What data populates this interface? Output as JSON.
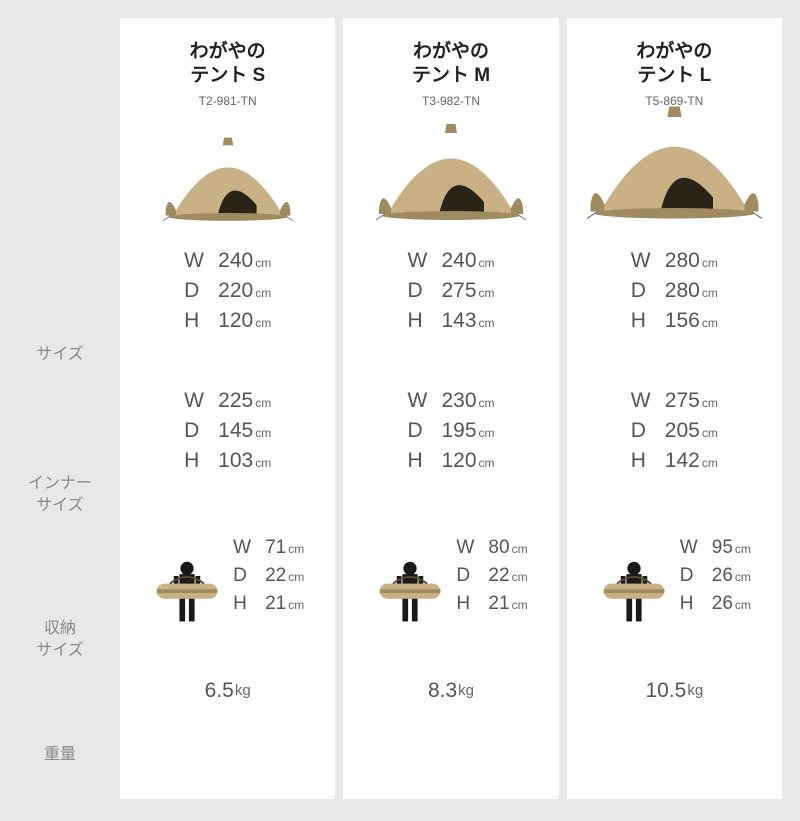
{
  "row_labels": {
    "size": "サイズ",
    "inner_size": "インナー\nサイズ",
    "pack_size": "収納\nサイズ",
    "weight": "重量"
  },
  "dimension_letters": {
    "w": "W",
    "d": "D",
    "h": "H"
  },
  "units": {
    "cm": "cm",
    "kg": "kg"
  },
  "colors": {
    "page_bg": "#e8e8e8",
    "card_bg": "#ffffff",
    "title_text": "#222222",
    "body_text": "#555555",
    "label_text": "#888888",
    "muted_text": "#666666",
    "tent_body": "#c8b285",
    "tent_shadow": "#a08a60",
    "tent_dark": "#2a2318",
    "bag_body": "#c8b285",
    "person_body": "#1a1a1a"
  },
  "products": [
    {
      "title_line1": "わがやの",
      "title_line2": "テント S",
      "model": "T2-981-TN",
      "tent_scale": "s",
      "size": {
        "w": "240",
        "d": "220",
        "h": "120"
      },
      "inner": {
        "w": "225",
        "d": "145",
        "h": "103"
      },
      "pack": {
        "w": "71",
        "d": "22",
        "h": "21"
      },
      "weight": "6.5"
    },
    {
      "title_line1": "わがやの",
      "title_line2": "テント M",
      "model": "T3-982-TN",
      "tent_scale": "m",
      "size": {
        "w": "240",
        "d": "275",
        "h": "143"
      },
      "inner": {
        "w": "230",
        "d": "195",
        "h": "120"
      },
      "pack": {
        "w": "80",
        "d": "22",
        "h": "21"
      },
      "weight": "8.3"
    },
    {
      "title_line1": "わがやの",
      "title_line2": "テント L",
      "model": "T5-869-TN",
      "tent_scale": "l",
      "size": {
        "w": "280",
        "d": "280",
        "h": "156"
      },
      "inner": {
        "w": "275",
        "d": "205",
        "h": "142"
      },
      "pack": {
        "w": "95",
        "d": "26",
        "h": "26"
      },
      "weight": "10.5"
    }
  ]
}
